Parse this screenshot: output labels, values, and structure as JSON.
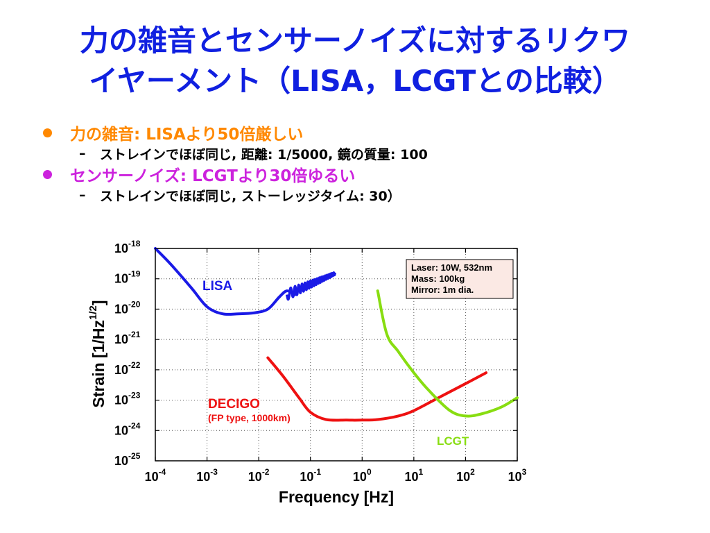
{
  "title": {
    "line1": "力の雑音とセンサーノイズに対するリクワ",
    "line2": "イヤーメント（LISA，LCGTとの比較）"
  },
  "bullets": [
    {
      "text": "力の雑音: LISAより50倍厳しい",
      "color": "#ff8800",
      "sub": "ストレインでほぼ同じ, 距離: 1/5000, 鏡の質量: 100"
    },
    {
      "text": "センサーノイズ: LCGTより30倍ゆるい",
      "color": "#cc22dd",
      "sub": "ストレインでほぼ同じ, ストーレッジタイム: 30）"
    }
  ],
  "chart_data": {
    "type": "line",
    "xlabel": "Frequency   [Hz]",
    "ylabel": "Strain   [1/Hz",
    "ylabel_sup": "1/2",
    "ylabel_end": "]",
    "xscale": "log",
    "yscale": "log",
    "xlim": [
      0.0001,
      1000
    ],
    "ylim": [
      1e-25,
      1e-18
    ],
    "grid": true,
    "x_ticks": [
      {
        "base": "10",
        "exp": "-4"
      },
      {
        "base": "10",
        "exp": "-3"
      },
      {
        "base": "10",
        "exp": "-2"
      },
      {
        "base": "10",
        "exp": "-1"
      },
      {
        "base": "10",
        "exp": "0"
      },
      {
        "base": "10",
        "exp": "1"
      },
      {
        "base": "10",
        "exp": "2"
      },
      {
        "base": "10",
        "exp": "3"
      }
    ],
    "y_ticks": [
      {
        "base": "10",
        "exp": "-18"
      },
      {
        "base": "10",
        "exp": "-19"
      },
      {
        "base": "10",
        "exp": "-20"
      },
      {
        "base": "10",
        "exp": "-21"
      },
      {
        "base": "10",
        "exp": "-22"
      },
      {
        "base": "10",
        "exp": "-23"
      },
      {
        "base": "10",
        "exp": "-24"
      },
      {
        "base": "10",
        "exp": "-25"
      }
    ],
    "series": [
      {
        "name": "LISA",
        "color": "#1a1ae6",
        "x": [
          0.0001,
          0.0002,
          0.0005,
          0.001,
          0.002,
          0.004,
          0.008,
          0.015,
          0.025,
          0.035,
          0.05
        ],
        "y": [
          1e-18,
          3e-19,
          5e-20,
          1.2e-20,
          7e-21,
          7e-21,
          7.5e-21,
          1e-20,
          2.5e-20,
          4e-20,
          3e-20
        ]
      },
      {
        "name": "DECIGO",
        "sublabel": "(FP type, 1000km)",
        "color": "#ee1111",
        "x": [
          0.015,
          0.03,
          0.06,
          0.1,
          0.2,
          0.5,
          1,
          2,
          5,
          10,
          30,
          100,
          250
        ],
        "y": [
          2.5e-22,
          6e-23,
          1.2e-23,
          4e-24,
          2.3e-24,
          2.2e-24,
          2.2e-24,
          2.3e-24,
          3e-24,
          4.5e-24,
          1.2e-23,
          3.5e-23,
          8e-23
        ]
      },
      {
        "name": "LCGT",
        "color": "#88dd11",
        "x": [
          2,
          3,
          5,
          10,
          20,
          50,
          100,
          200,
          500,
          1000
        ],
        "y": [
          4e-20,
          1.5e-21,
          4e-22,
          8e-23,
          2e-23,
          4.5e-24,
          3e-24,
          3.5e-24,
          6e-24,
          1.2e-23
        ]
      }
    ],
    "lisa_wiggle": {
      "x_start": 0.035,
      "x_end": 0.3,
      "y_start": 3e-20,
      "y_end": 1.5e-19,
      "cycles": 14
    },
    "annotation": {
      "lines": [
        "Laser: 10W, 532nm",
        "Mass: 100kg",
        "Mirror: 1m dia."
      ],
      "background": "#fbe9e4",
      "position": "top-right"
    }
  }
}
